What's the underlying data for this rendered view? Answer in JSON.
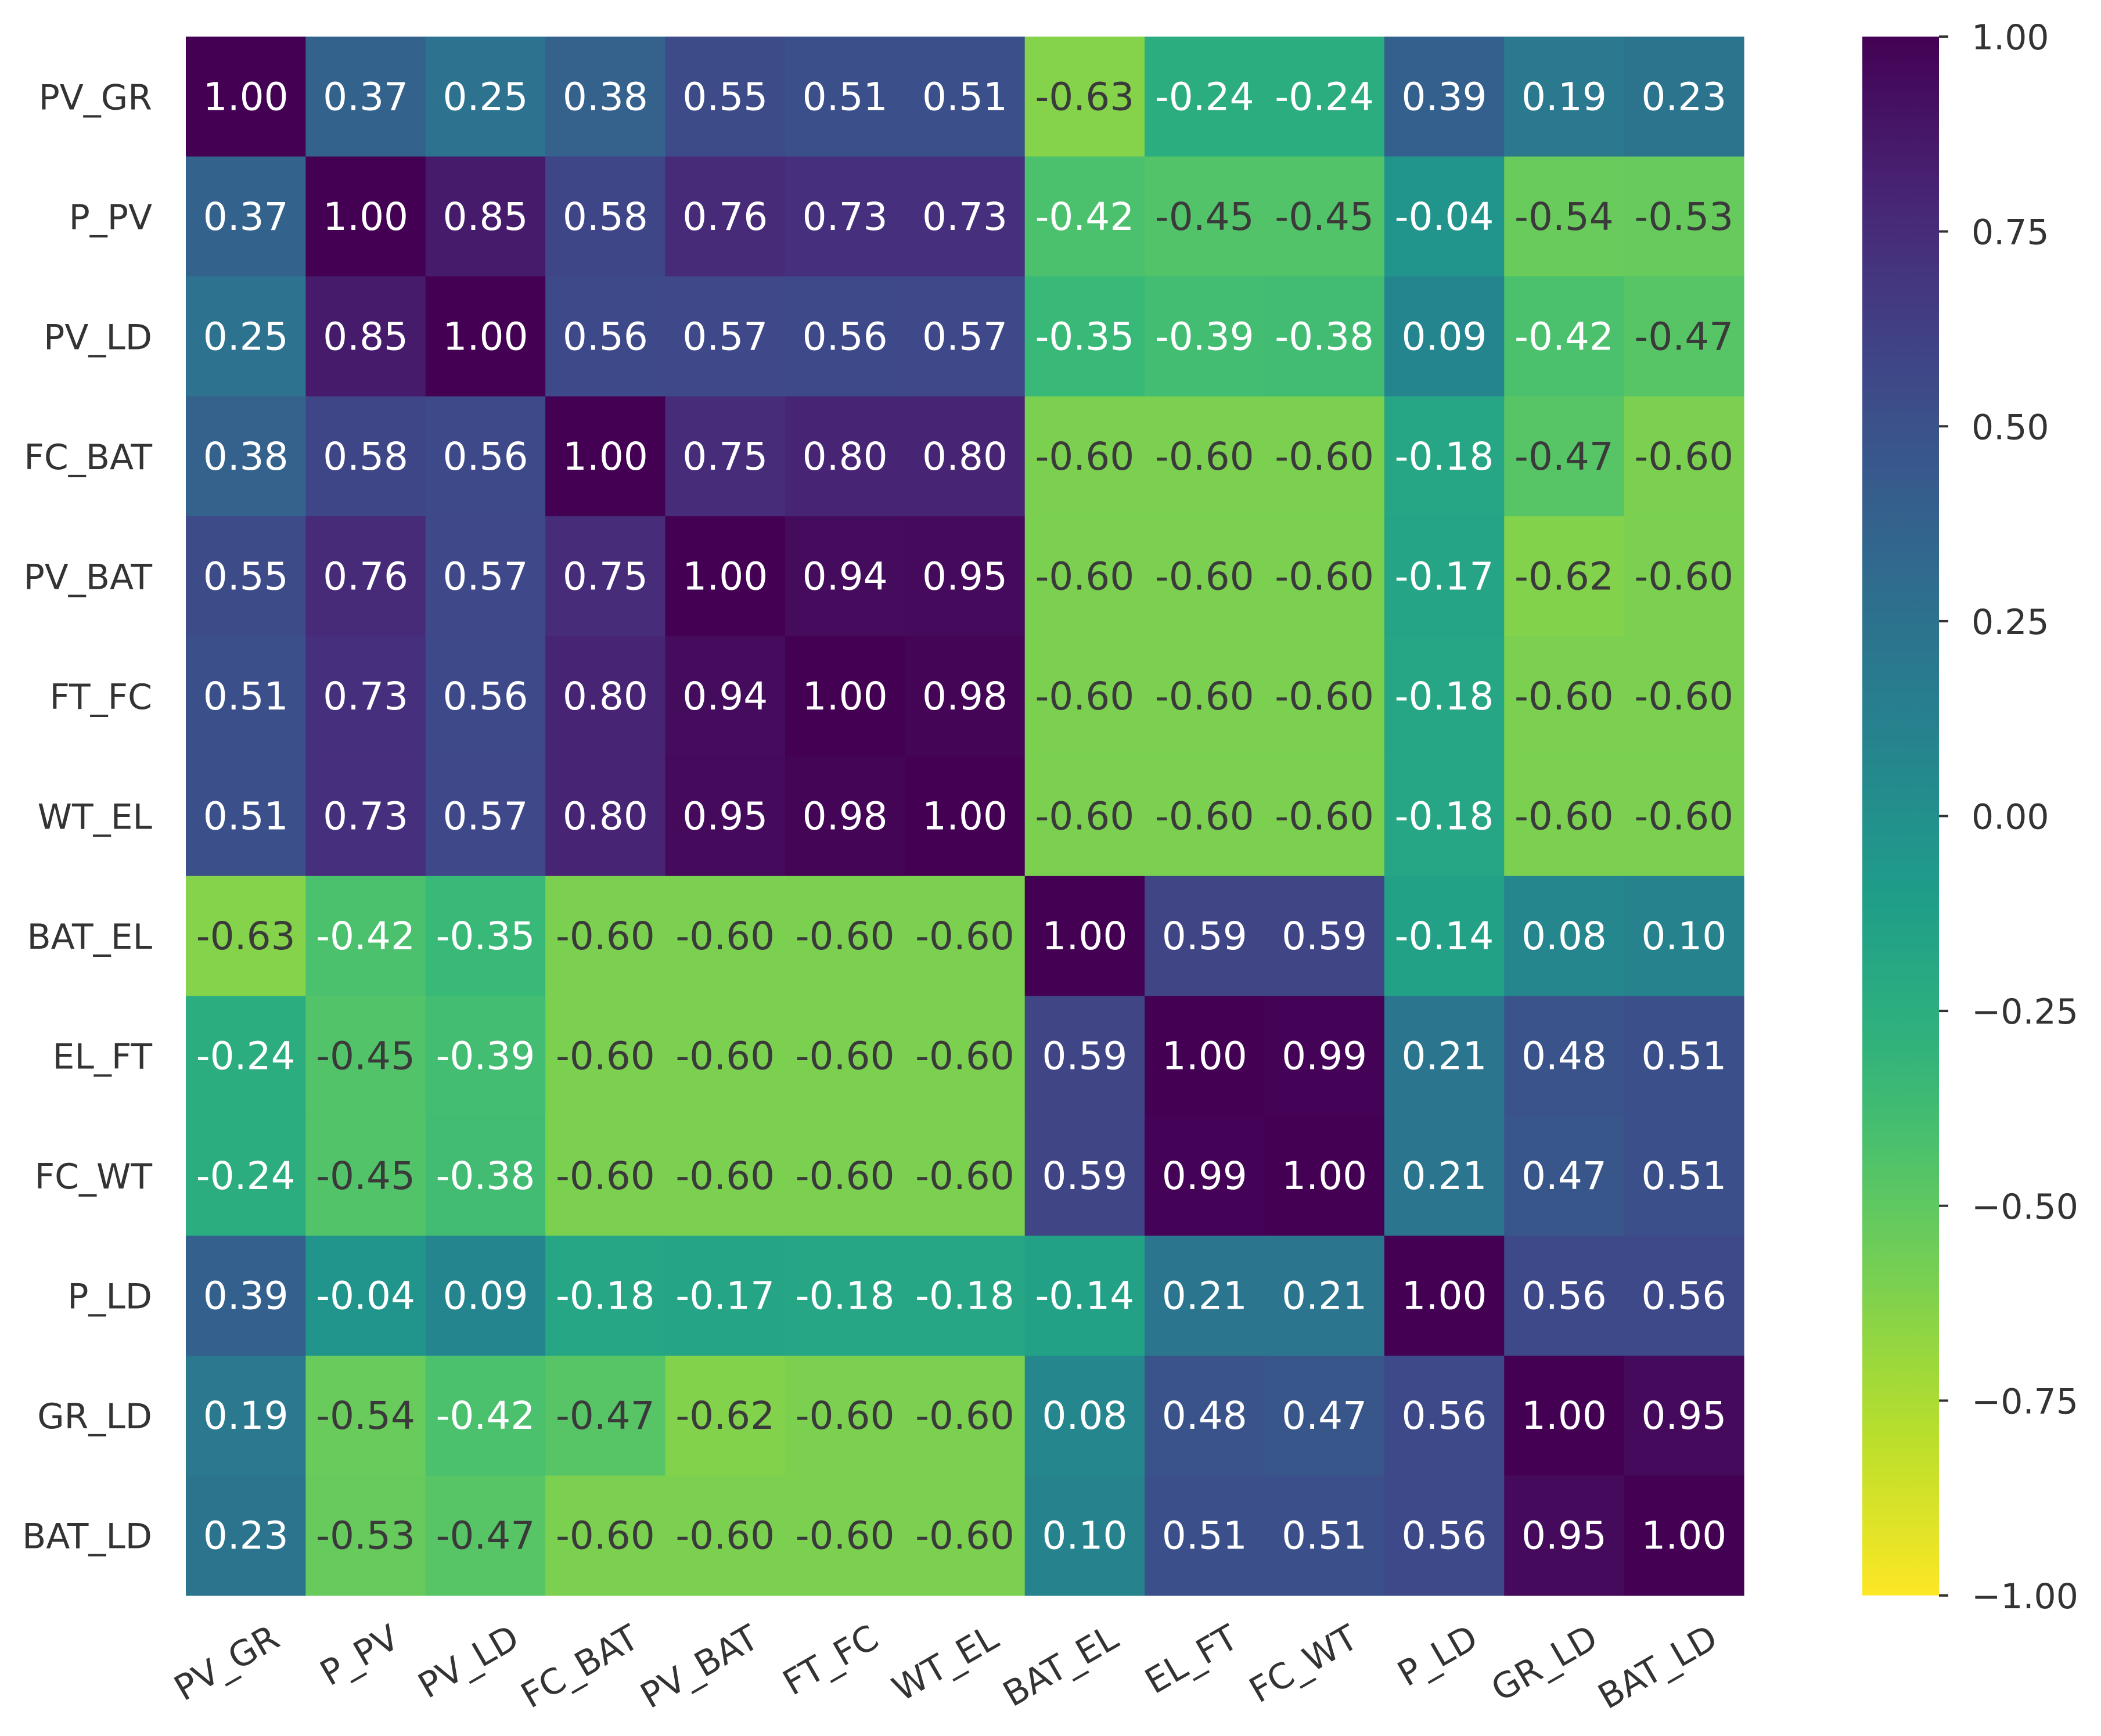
{
  "chart_data": {
    "type": "heatmap",
    "title": "",
    "colormap": "viridis_r",
    "vmin": -1.0,
    "vmax": 1.0,
    "labels": [
      "PV_GR",
      "P_PV",
      "PV_LD",
      "FC_BAT",
      "PV_BAT",
      "FT_FC",
      "WT_EL",
      "BAT_EL",
      "EL_FT",
      "FC_WT",
      "P_LD",
      "GR_LD",
      "BAT_LD"
    ],
    "values": [
      [
        1.0,
        0.37,
        0.25,
        0.38,
        0.55,
        0.51,
        0.51,
        -0.63,
        -0.24,
        -0.24,
        0.39,
        0.19,
        0.23
      ],
      [
        0.37,
        1.0,
        0.85,
        0.58,
        0.76,
        0.73,
        0.73,
        -0.42,
        -0.45,
        -0.45,
        -0.04,
        -0.54,
        -0.53
      ],
      [
        0.25,
        0.85,
        1.0,
        0.56,
        0.57,
        0.56,
        0.57,
        -0.35,
        -0.39,
        -0.38,
        0.09,
        -0.42,
        -0.47
      ],
      [
        0.38,
        0.58,
        0.56,
        1.0,
        0.75,
        0.8,
        0.8,
        -0.6,
        -0.6,
        -0.6,
        -0.18,
        -0.47,
        -0.6
      ],
      [
        0.55,
        0.76,
        0.57,
        0.75,
        1.0,
        0.94,
        0.95,
        -0.6,
        -0.6,
        -0.6,
        -0.17,
        -0.62,
        -0.6
      ],
      [
        0.51,
        0.73,
        0.56,
        0.8,
        0.94,
        1.0,
        0.98,
        -0.6,
        -0.6,
        -0.6,
        -0.18,
        -0.6,
        -0.6
      ],
      [
        0.51,
        0.73,
        0.57,
        0.8,
        0.95,
        0.98,
        1.0,
        -0.6,
        -0.6,
        -0.6,
        -0.18,
        -0.6,
        -0.6
      ],
      [
        -0.63,
        -0.42,
        -0.35,
        -0.6,
        -0.6,
        -0.6,
        -0.6,
        1.0,
        0.59,
        0.59,
        -0.14,
        0.08,
        0.1
      ],
      [
        -0.24,
        -0.45,
        -0.39,
        -0.6,
        -0.6,
        -0.6,
        -0.6,
        0.59,
        1.0,
        0.99,
        0.21,
        0.48,
        0.51
      ],
      [
        -0.24,
        -0.45,
        -0.38,
        -0.6,
        -0.6,
        -0.6,
        -0.6,
        0.59,
        0.99,
        1.0,
        0.21,
        0.47,
        0.51
      ],
      [
        0.39,
        -0.04,
        0.09,
        -0.18,
        -0.17,
        -0.18,
        -0.18,
        -0.14,
        0.21,
        0.21,
        1.0,
        0.56,
        0.56
      ],
      [
        0.19,
        -0.54,
        -0.42,
        -0.47,
        -0.62,
        -0.6,
        -0.6,
        0.08,
        0.48,
        0.47,
        0.56,
        1.0,
        0.95
      ],
      [
        0.23,
        -0.53,
        -0.47,
        -0.6,
        -0.6,
        -0.6,
        -0.6,
        0.1,
        0.51,
        0.51,
        0.56,
        0.95,
        1.0
      ]
    ],
    "colorbar_ticks": [
      1.0,
      0.75,
      0.5,
      0.25,
      0.0,
      -0.25,
      -0.5,
      -0.75,
      -1.0
    ],
    "colorbar_tick_labels": [
      "1.00",
      "0.75",
      "0.50",
      "0.25",
      "0.00",
      "−0.25",
      "−0.50",
      "−0.75",
      "−1.00"
    ],
    "annotation_format": "0.00",
    "text_light": "#ffffff",
    "text_dark": "#3a3a3a",
    "tick_color": "#333333"
  }
}
